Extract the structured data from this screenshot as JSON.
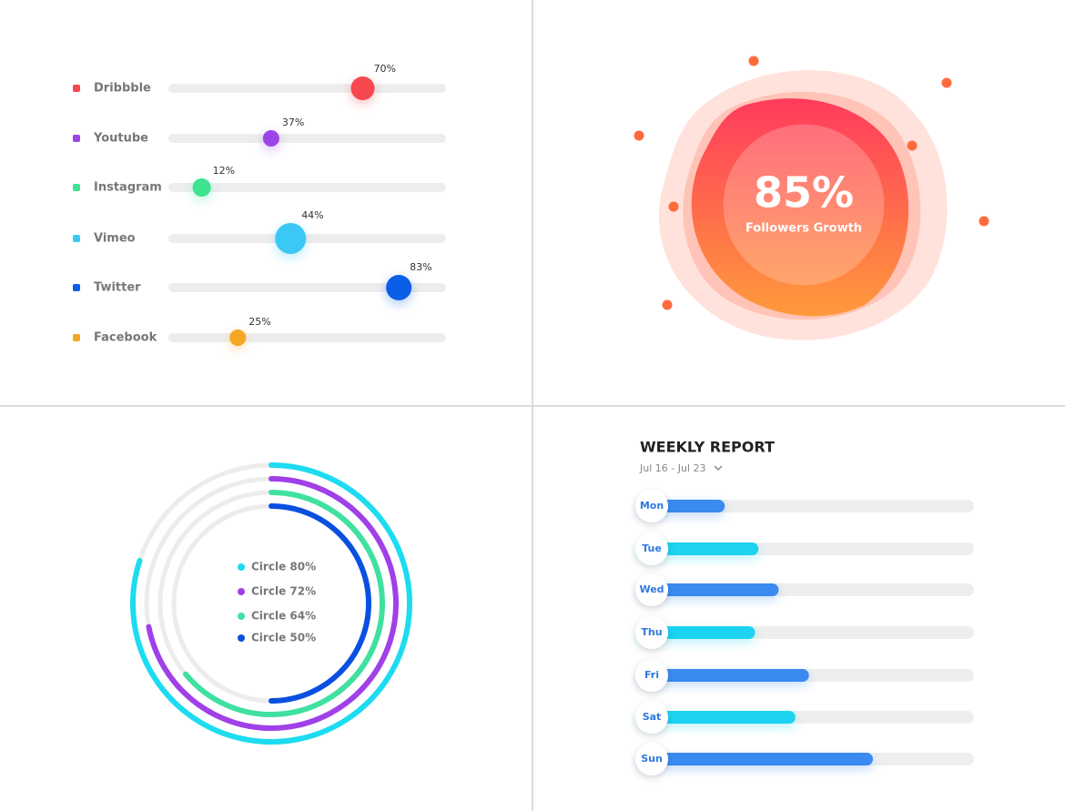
{
  "chart_data": [
    {
      "type": "slider",
      "categories": [
        "Dribbble",
        "Youtube",
        "Instagram",
        "Vimeo",
        "Twitter",
        "Facebook"
      ],
      "values": [
        70,
        37,
        12,
        44,
        83,
        25
      ],
      "value_labels": [
        "70%",
        "37%",
        "12%",
        "44%",
        "83%",
        "25%"
      ],
      "colors": [
        "#f7474f",
        "#9b45e8",
        "#3ee38f",
        "#3cc8f5",
        "#0a5ee8",
        "#f5a623"
      ],
      "xlim": [
        0,
        100
      ]
    },
    {
      "type": "blob",
      "values": [
        85
      ],
      "value_labels": [
        "85%"
      ],
      "subtitle": "Followers Growth",
      "color": "#ff6a4d",
      "ylim": [
        0,
        100
      ]
    },
    {
      "type": "radial",
      "categories": [
        "Circle 80%",
        "Circle 72%",
        "Circle 64%",
        "Circle 50%"
      ],
      "values": [
        80,
        72,
        64,
        50
      ],
      "colors": [
        "#1ddbf0",
        "#a040e8",
        "#40e0a0",
        "#0a50e0"
      ],
      "ylim": [
        0,
        100
      ]
    },
    {
      "type": "bar",
      "title": "WEEKLY REPORT",
      "subtitle": "Jul 16 - Jul 23",
      "categories": [
        "Mon",
        "Tue",
        "Wed",
        "Thu",
        "Fri",
        "Sat",
        "Sun"
      ],
      "values": [
        26,
        36,
        42,
        35,
        51,
        47,
        70
      ],
      "colors": [
        "#3a8af0",
        "#1cd3f0",
        "#3a8af0",
        "#1cd3f0",
        "#3a8af0",
        "#1cd3f0",
        "#3a8af0"
      ],
      "xlim": [
        0,
        100
      ]
    }
  ]
}
